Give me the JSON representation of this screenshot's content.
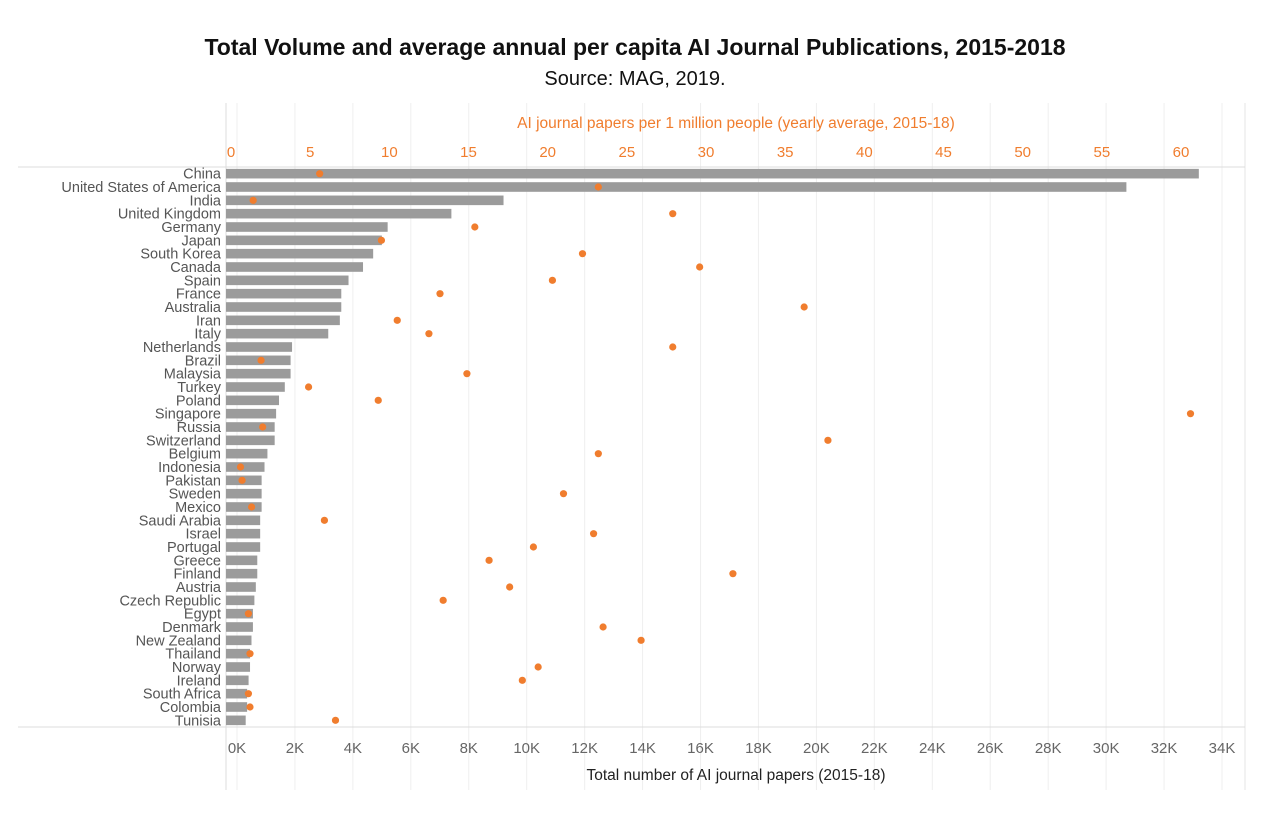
{
  "chart_data": {
    "type": "bar",
    "title": "Total Volume and average annual per capita AI Journal Publications, 2015-2018",
    "subtitle": "Source: MAG, 2019.",
    "xlabel": "Total number of AI journal papers (2015-18)",
    "x2label": "AI journal papers per 1 million people (yearly average, 2015-18)",
    "xlim": [
      0,
      35000
    ],
    "x2lim": [
      0,
      64
    ],
    "x_ticks": [
      0,
      2000,
      4000,
      6000,
      8000,
      10000,
      12000,
      14000,
      16000,
      18000,
      20000,
      22000,
      24000,
      26000,
      28000,
      30000,
      32000,
      34000
    ],
    "x_tick_labels": [
      "0K",
      "2K",
      "4K",
      "6K",
      "8K",
      "10K",
      "12K",
      "14K",
      "16K",
      "18K",
      "20K",
      "22K",
      "24K",
      "26K",
      "28K",
      "30K",
      "32K",
      "34K"
    ],
    "x2_ticks": [
      0,
      5,
      10,
      15,
      20,
      25,
      30,
      35,
      40,
      45,
      50,
      55,
      60
    ],
    "x2_tick_labels": [
      "0",
      "5",
      "10",
      "15",
      "20",
      "25",
      "30",
      "35",
      "40",
      "45",
      "50",
      "55",
      "60"
    ],
    "grid": true,
    "categories": [
      "China",
      "United States of America",
      "India",
      "United Kingdom",
      "Germany",
      "Japan",
      "South Korea",
      "Canada",
      "Spain",
      "France",
      "Australia",
      "Iran",
      "Italy",
      "Netherlands",
      "Brazil",
      "Malaysia",
      "Turkey",
      "Poland",
      "Singapore",
      "Russia",
      "Switzerland",
      "Belgium",
      "Indonesia",
      "Pakistan",
      "Sweden",
      "Mexico",
      "Saudi Arabia",
      "Israel",
      "Portugal",
      "Greece",
      "Finland",
      "Austria",
      "Czech Republic",
      "Egypt",
      "Denmark",
      "New Zealand",
      "Thailand",
      "Norway",
      "Ireland",
      "South Africa",
      "Colombia",
      "Tunisia"
    ],
    "series": [
      {
        "axis": "bottom",
        "color": "#9b9b9b",
        "values": [
          33200,
          30700,
          9200,
          7400,
          5200,
          5000,
          4700,
          4350,
          3850,
          3600,
          3600,
          3550,
          3150,
          1900,
          1850,
          1850,
          1650,
          1450,
          1350,
          1300,
          1300,
          1050,
          950,
          850,
          850,
          850,
          800,
          800,
          800,
          700,
          700,
          650,
          600,
          550,
          550,
          500,
          450,
          450,
          400,
          350,
          350,
          300
        ]
      },
      {
        "axis": "top",
        "color": "#f07d2e",
        "values": [
          5.6,
          23.2,
          1.4,
          27.9,
          15.4,
          9.5,
          22.2,
          29.6,
          20.3,
          13.2,
          36.2,
          10.5,
          12.5,
          27.9,
          1.9,
          14.9,
          4.9,
          9.3,
          60.6,
          2.0,
          37.7,
          23.2,
          0.6,
          0.7,
          21.0,
          1.3,
          5.9,
          22.9,
          19.1,
          16.3,
          31.7,
          17.6,
          13.4,
          1.1,
          23.5,
          25.9,
          1.2,
          19.4,
          18.4,
          1.1,
          1.2,
          6.6
        ]
      }
    ]
  }
}
